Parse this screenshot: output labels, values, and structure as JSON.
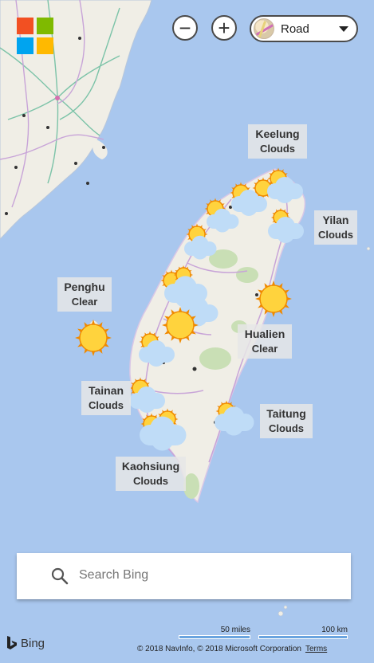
{
  "map": {
    "style_selector": {
      "label": "Road"
    },
    "zoom_out_symbol": "−",
    "zoom_in_symbol": "+",
    "search": {
      "placeholder": "Search Bing"
    },
    "brand": "Bing",
    "scale": {
      "imperial": "50 miles",
      "metric": "100 km"
    },
    "copyright": "© 2018 NavInfo, © 2018 Microsoft Corporation",
    "terms_label": "Terms",
    "logo_colors": [
      "#f25022",
      "#7fba00",
      "#00a4ef",
      "#ffb900"
    ],
    "colors": {
      "water": "#a9c7ee",
      "land": "#f0eee6",
      "park": "#c9dfb5",
      "road": "#c8a4d8",
      "highway": "#7cc3a8",
      "sun": "#ffd33d",
      "sun_ray": "#f08a00",
      "cloud": "#bfdcf7"
    }
  },
  "cities": [
    {
      "name": "Keelung",
      "condition": "Clouds",
      "icon": "cloudy-sun-icon"
    },
    {
      "name": "Yilan",
      "condition": "Clouds",
      "icon": "cloudy-sun-icon"
    },
    {
      "name": "Penghu",
      "condition": "Clear",
      "icon": "sun-icon"
    },
    {
      "name": "Hualien",
      "condition": "Clear",
      "icon": "sun-icon"
    },
    {
      "name": "Tainan",
      "condition": "Clouds",
      "icon": "cloudy-sun-icon"
    },
    {
      "name": "Taitung",
      "condition": "Clouds",
      "icon": "cloudy-sun-icon"
    },
    {
      "name": "Kaohsiung",
      "condition": "Clouds",
      "icon": "cloudy-sun-icon"
    }
  ]
}
